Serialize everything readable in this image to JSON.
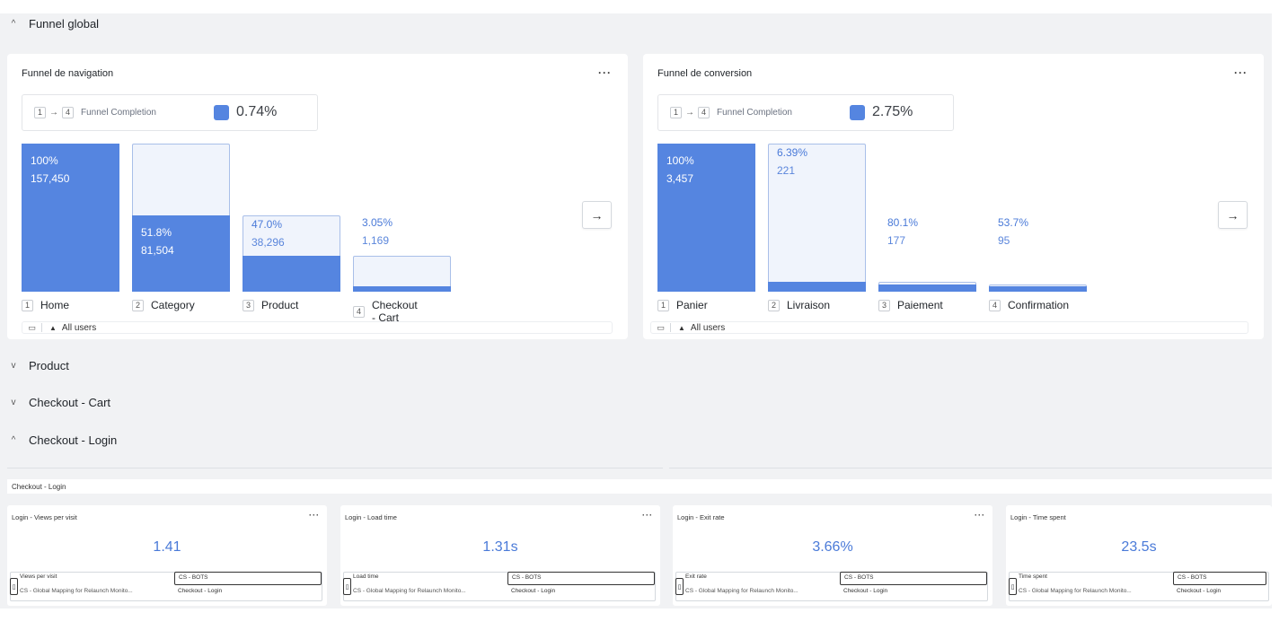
{
  "sections": {
    "funnel_global": {
      "label": "Funnel global",
      "expanded": true
    },
    "product": {
      "label": "Product",
      "expanded": false
    },
    "checkout_cart": {
      "label": "Checkout - Cart",
      "expanded": false
    },
    "checkout_login": {
      "label": "Checkout - Login",
      "expanded": true
    }
  },
  "icons": {
    "chevron_up": "^",
    "chevron_down": "v",
    "arrow_right": "→",
    "more": "···",
    "user": "▲",
    "device": "▭"
  },
  "accent_color": "#5585e0",
  "navigation_funnel": {
    "title": "Funnel de navigation",
    "completion": {
      "from_step": "1",
      "to_step": "4",
      "label": "Funnel Completion",
      "value": "0.74%"
    },
    "steps": [
      {
        "index": "1",
        "name": "Home",
        "pct": "100%",
        "count": "157,450",
        "fraction": 1.0,
        "ref": 1.0
      },
      {
        "index": "2",
        "name": "Category",
        "pct": "51.8%",
        "count": "81,504",
        "fraction": 0.518,
        "ref": 1.0
      },
      {
        "index": "3",
        "name": "Product",
        "pct": "47.0%",
        "count": "38,296",
        "fraction": 0.243,
        "ref": 0.518
      },
      {
        "index": "4",
        "name": "Checkout - Cart",
        "pct": "3.05%",
        "count": "1,169",
        "fraction": 0.0074,
        "ref": 0.243
      }
    ],
    "segment": "All users"
  },
  "conversion_funnel": {
    "title": "Funnel de conversion",
    "completion": {
      "from_step": "1",
      "to_step": "4",
      "label": "Funnel Completion",
      "value": "2.75%"
    },
    "steps": [
      {
        "index": "1",
        "name": "Panier",
        "pct": "100%",
        "count": "3,457",
        "fraction": 1.0,
        "ref": 1.0
      },
      {
        "index": "2",
        "name": "Livraison",
        "pct": "6.39%",
        "count": "221",
        "fraction": 0.064,
        "ref": 1.0
      },
      {
        "index": "3",
        "name": "Paiement",
        "pct": "80.1%",
        "count": "177",
        "fraction": 0.051,
        "ref": 0.064
      },
      {
        "index": "4",
        "name": "Confirmation",
        "pct": "53.7%",
        "count": "95",
        "fraction": 0.0275,
        "ref": 0.051
      }
    ],
    "segment": "All users"
  },
  "checkout_login_tab": "Checkout - Login",
  "metric_cards": [
    {
      "title": "Login - Views per visit",
      "value": "1.41",
      "metric": "Views per visit",
      "segment": "CS - BOTS",
      "path": "CS - Global Mapping for Relaunch Monito...",
      "page": "Checkout - Login"
    },
    {
      "title": "Login - Load time",
      "value": "1.31s",
      "metric": "Load time",
      "segment": "CS - BOTS",
      "path": "CS - Global Mapping for Relaunch Monito...",
      "page": "Checkout - Login"
    },
    {
      "title": "Login - Exit rate",
      "value": "3.66%",
      "metric": "Exit rate",
      "segment": "CS - BOTS",
      "path": "CS - Global Mapping for Relaunch Monito...",
      "page": "Checkout - Login"
    },
    {
      "title": "Login - Time spent",
      "value": "23.5s",
      "metric": "Time spent",
      "segment": "CS - BOTS",
      "path": "CS - Global Mapping for Relaunch Monito...",
      "page": "Checkout - Login"
    }
  ]
}
